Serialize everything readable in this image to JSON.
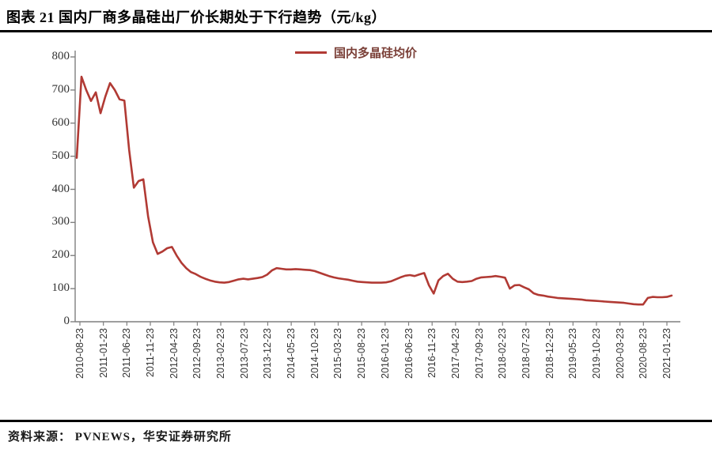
{
  "page": {
    "title": "图表 21  国内厂商多晶硅出厂价长期处于下行趋势（元/kg）",
    "source": "资料来源：  PVNEWS，华安证券研究所"
  },
  "colors": {
    "line": "#B13A34",
    "legend_text": "#7B4038",
    "axis": "#7f7f7f",
    "tick_text": "#333333"
  },
  "chart_data": {
    "type": "line",
    "title": "图表 21 国内厂商多晶硅出厂价长期处于下行趋势（元/kg）",
    "ylabel": "",
    "xlabel": "",
    "ylim": [
      0,
      800
    ],
    "yticks": [
      0,
      100,
      200,
      300,
      400,
      500,
      600,
      700,
      800
    ],
    "grid": false,
    "legend_position": "top-center",
    "xtick_labels": [
      "2010-08-23",
      "2011-01-23",
      "2011-06-23",
      "2011-11-23",
      "2012-04-23",
      "2012-09-23",
      "2013-02-23",
      "2013-07-23",
      "2013-12-23",
      "2014-05-23",
      "2014-10-23",
      "2015-03-23",
      "2015-08-23",
      "2016-01-23",
      "2016-06-23",
      "2016-11-23",
      "2017-04-23",
      "2017-09-23",
      "2018-02-23",
      "2018-07-23",
      "2018-12-23",
      "2019-05-23",
      "2019-10-23",
      "2020-03-23",
      "2020-08-23",
      "2021-01-23"
    ],
    "series": [
      {
        "name": "国内多晶硅均价",
        "color": "#B13A34",
        "x": [
          "2010-08",
          "2010-09",
          "2010-10",
          "2010-11",
          "2010-12",
          "2011-01",
          "2011-02",
          "2011-03",
          "2011-04",
          "2011-05",
          "2011-06",
          "2011-07",
          "2011-08",
          "2011-09",
          "2011-10",
          "2011-11",
          "2011-12",
          "2012-01",
          "2012-02",
          "2012-03",
          "2012-04",
          "2012-05",
          "2012-06",
          "2012-07",
          "2012-08",
          "2012-09",
          "2012-10",
          "2012-11",
          "2012-12",
          "2013-01",
          "2013-02",
          "2013-03",
          "2013-04",
          "2013-05",
          "2013-06",
          "2013-07",
          "2013-08",
          "2013-09",
          "2013-10",
          "2013-11",
          "2013-12",
          "2014-01",
          "2014-02",
          "2014-03",
          "2014-04",
          "2014-05",
          "2014-06",
          "2014-07",
          "2014-08",
          "2014-09",
          "2014-10",
          "2014-11",
          "2014-12",
          "2015-01",
          "2015-02",
          "2015-03",
          "2015-04",
          "2015-05",
          "2015-06",
          "2015-07",
          "2015-08",
          "2015-09",
          "2015-10",
          "2015-11",
          "2015-12",
          "2016-01",
          "2016-02",
          "2016-03",
          "2016-04",
          "2016-05",
          "2016-06",
          "2016-07",
          "2016-08",
          "2016-09",
          "2016-10",
          "2016-11",
          "2016-12",
          "2017-01",
          "2017-02",
          "2017-03",
          "2017-04",
          "2017-05",
          "2017-06",
          "2017-07",
          "2017-08",
          "2017-09",
          "2017-10",
          "2017-11",
          "2017-12",
          "2018-01",
          "2018-02",
          "2018-03",
          "2018-04",
          "2018-05",
          "2018-06",
          "2018-07",
          "2018-08",
          "2018-09",
          "2018-10",
          "2018-11",
          "2018-12",
          "2019-01",
          "2019-02",
          "2019-03",
          "2019-04",
          "2019-05",
          "2019-06",
          "2019-07",
          "2019-08",
          "2019-09",
          "2019-10",
          "2019-11",
          "2019-12",
          "2020-01",
          "2020-02",
          "2020-03",
          "2020-04",
          "2020-05",
          "2020-06",
          "2020-07",
          "2020-08",
          "2020-09",
          "2020-10",
          "2020-11",
          "2020-12",
          "2021-01"
        ],
        "values": [
          495,
          740,
          700,
          667,
          693,
          630,
          680,
          721,
          700,
          672,
          668,
          520,
          405,
          425,
          430,
          318,
          240,
          205,
          212,
          222,
          226,
          200,
          178,
          162,
          150,
          144,
          136,
          130,
          125,
          121,
          119,
          118,
          120,
          124,
          128,
          130,
          128,
          130,
          132,
          135,
          142,
          155,
          162,
          160,
          158,
          158,
          159,
          158,
          157,
          156,
          153,
          148,
          143,
          138,
          134,
          131,
          129,
          127,
          124,
          121,
          120,
          119,
          118,
          118,
          118,
          119,
          122,
          128,
          134,
          139,
          141,
          138,
          143,
          147,
          110,
          85,
          125,
          138,
          145,
          130,
          121,
          120,
          121,
          123,
          130,
          134,
          135,
          136,
          138,
          136,
          133,
          100,
          110,
          111,
          104,
          98,
          86,
          81,
          79,
          76,
          74,
          72,
          71,
          70,
          69,
          68,
          67,
          65,
          64,
          63,
          62,
          61,
          60,
          59,
          58,
          57,
          55,
          53,
          52,
          52,
          72,
          75,
          74,
          74,
          75,
          79
        ]
      }
    ]
  }
}
